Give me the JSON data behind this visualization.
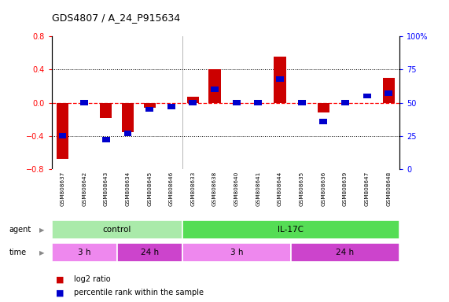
{
  "title": "GDS4807 / A_24_P915634",
  "samples": [
    "GSM808637",
    "GSM808642",
    "GSM808643",
    "GSM808634",
    "GSM808645",
    "GSM808646",
    "GSM808633",
    "GSM808638",
    "GSM808640",
    "GSM808641",
    "GSM808644",
    "GSM808635",
    "GSM808636",
    "GSM808639",
    "GSM808647",
    "GSM808648"
  ],
  "log2_ratio": [
    -0.68,
    0.0,
    -0.18,
    -0.35,
    -0.06,
    0.0,
    0.07,
    0.4,
    0.0,
    0.0,
    0.55,
    0.0,
    -0.12,
    0.0,
    0.0,
    0.3
  ],
  "percentile_rank": [
    25,
    50,
    22,
    27,
    45,
    47,
    50,
    60,
    50,
    50,
    68,
    50,
    36,
    50,
    55,
    57
  ],
  "agent_groups": [
    {
      "label": "control",
      "start": 0,
      "end": 6,
      "color": "#aaeaaa"
    },
    {
      "label": "IL-17C",
      "start": 6,
      "end": 16,
      "color": "#55dd55"
    }
  ],
  "time_groups": [
    {
      "label": "3 h",
      "start": 0,
      "end": 3,
      "color": "#ee88ee"
    },
    {
      "label": "24 h",
      "start": 3,
      "end": 6,
      "color": "#cc44cc"
    },
    {
      "label": "3 h",
      "start": 6,
      "end": 11,
      "color": "#ee88ee"
    },
    {
      "label": "24 h",
      "start": 11,
      "end": 16,
      "color": "#cc44cc"
    }
  ],
  "ylim_left": [
    -0.8,
    0.8
  ],
  "ylim_right": [
    0,
    100
  ],
  "yticks_left": [
    -0.8,
    -0.4,
    0.0,
    0.4,
    0.8
  ],
  "yticks_right": [
    0,
    25,
    50,
    75,
    100
  ],
  "bar_color_red": "#cc0000",
  "bar_color_blue": "#0000cc",
  "hline_color": "#ff0000",
  "dotline_color": "#000000",
  "bg_color": "#ffffff",
  "legend_red": "log2 ratio",
  "legend_blue": "percentile rank within the sample",
  "label_bg": "#cccccc"
}
